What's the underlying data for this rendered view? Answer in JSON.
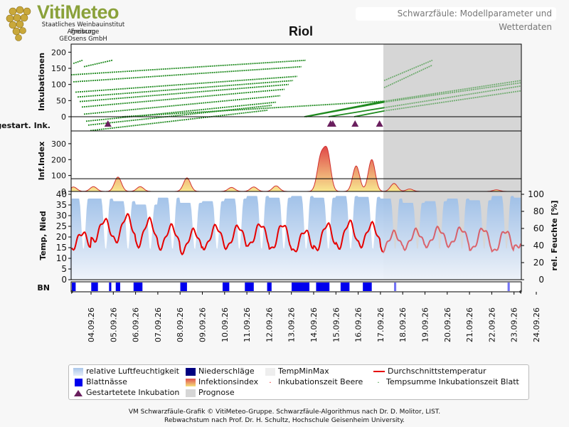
{
  "header": {
    "brand": "VitiMeteo",
    "institute": "Staatliches Weinbauinstitut Freiburg",
    "partner1": "Agroscope",
    "partner2": "GEOsens GmbH",
    "model_label": "Schwarzfäule: Modellparameter und Wetterdaten"
  },
  "chart_data": {
    "type": "line",
    "title": "Riol",
    "dates": [
      "04.09.26",
      "05.09.26",
      "06.09.26",
      "07.09.26",
      "08.09.26",
      "09.09.26",
      "10.09.26",
      "11.09.26",
      "12.09.26",
      "13.09.26",
      "14.09.26",
      "15.09.26",
      "16.09.26",
      "17.09.26",
      "18.09.26",
      "19.09.26",
      "20.09.26",
      "21.09.26",
      "22.09.26",
      "23.09.26",
      "24.09.26"
    ],
    "forecast_start": "17.09.26 +0.7d",
    "panels": {
      "inkubationen": {
        "ylabel": "Inkubationen",
        "yticks": [
          0,
          50,
          100,
          150,
          200
        ],
        "ylim": [
          0,
          225
        ],
        "reference_line": 0,
        "series_start_values": [
          175,
          155,
          125,
          112,
          100,
          85,
          65,
          45,
          35,
          20
        ]
      },
      "gestartete_inkubation": {
        "ylabel": "gestart. Ink.",
        "events_day_offsets": [
          1.75,
          11.75,
          11.85,
          12.85,
          13.95
        ]
      },
      "infektionsindex": {
        "ylabel": "Inf.Index",
        "yticks": [
          0,
          100,
          200,
          300
        ],
        "ylim": [
          0,
          380
        ],
        "threshold": 80,
        "peaks": [
          {
            "day": 0.2,
            "value": 28
          },
          {
            "day": 1.1,
            "value": 30
          },
          {
            "day": 2.2,
            "value": 90
          },
          {
            "day": 3.2,
            "value": 30
          },
          {
            "day": 5.3,
            "value": 85
          },
          {
            "day": 7.3,
            "value": 25
          },
          {
            "day": 8.3,
            "value": 28
          },
          {
            "day": 9.3,
            "value": 35
          },
          {
            "day": 11.3,
            "value": 200
          },
          {
            "day": 11.6,
            "value": 240
          },
          {
            "day": 12.9,
            "value": 160
          },
          {
            "day": 13.6,
            "value": 200
          },
          {
            "day": 14.6,
            "value": 50
          },
          {
            "day": 15.3,
            "value": 15
          },
          {
            "day": 19.2,
            "value": 10
          }
        ]
      },
      "wetter": {
        "ylabel_left": "Temp, Nied",
        "ylabel_right": "rel. Feuchte [%]",
        "yticks_left": [
          0,
          5,
          10,
          15,
          20,
          25,
          30,
          35,
          40
        ],
        "yticks_right": [
          0,
          20,
          40,
          60,
          80,
          100
        ],
        "temperature_daily_mean": [
          18,
          23,
          24,
          22,
          20,
          18,
          20,
          20,
          21,
          20,
          18,
          20,
          21,
          21,
          18,
          19,
          20,
          20,
          19,
          18,
          19
        ],
        "temperature_daily_amplitude": [
          4,
          5,
          6,
          6,
          5,
          5,
          5,
          5,
          5,
          6,
          5,
          6,
          6,
          5,
          4,
          4,
          4,
          4,
          5,
          5,
          4
        ],
        "humidity_daily_max": [
          95,
          95,
          92,
          88,
          96,
          90,
          92,
          95,
          98,
          96,
          98,
          96,
          98,
          97,
          95,
          90,
          92,
          95,
          93,
          98,
          96
        ]
      },
      "blattnaesse": {
        "ylabel": "BN",
        "intervals_day": [
          [
            0,
            0.3
          ],
          [
            1.0,
            1.3
          ],
          [
            1.8,
            1.9
          ],
          [
            2.1,
            2.3
          ],
          [
            2.9,
            3.3
          ],
          [
            5.0,
            5.3
          ],
          [
            6.9,
            7.2
          ],
          [
            7.9,
            8.3
          ],
          [
            8.9,
            9.1
          ],
          [
            10.0,
            10.8
          ],
          [
            11.1,
            11.7
          ],
          [
            12.2,
            12.6
          ],
          [
            13.2,
            13.6
          ],
          [
            14.6,
            14.7
          ],
          [
            19.7,
            19.8
          ]
        ]
      }
    }
  },
  "legend": {
    "humidity": "relative Luftfeuchtigkeit",
    "precip": "Niederschläge",
    "tempminmax": "TempMinMax",
    "meantemp": "Durchschnittstemperatur",
    "leafwet": "Blattnässe",
    "infindex": "Infektionsindex",
    "inc_berry": "Inkubationszeit Beere",
    "inc_leaf": "Tempsumme Inkubationszeit Blatt",
    "started": "Gestartetete Inkubation",
    "forecast": "Prognose"
  },
  "footer": {
    "line1": "VM Schwarzfäule-Grafik © VitiMeteo-Gruppe. Schwarzfäule-Algorithmus nach Dr. D. Molitor, LIST.",
    "line2": "Rebwachstum nach Prof. Dr. H. Schultz, Hochschule Geisenheim University."
  },
  "colors": {
    "green": "#1f8a1f",
    "red": "#e60000",
    "humidity": "#a9c6ea",
    "leafwet": "#0000ee",
    "triangle": "#6a1f5e",
    "forecast": "#d6d6d6"
  }
}
